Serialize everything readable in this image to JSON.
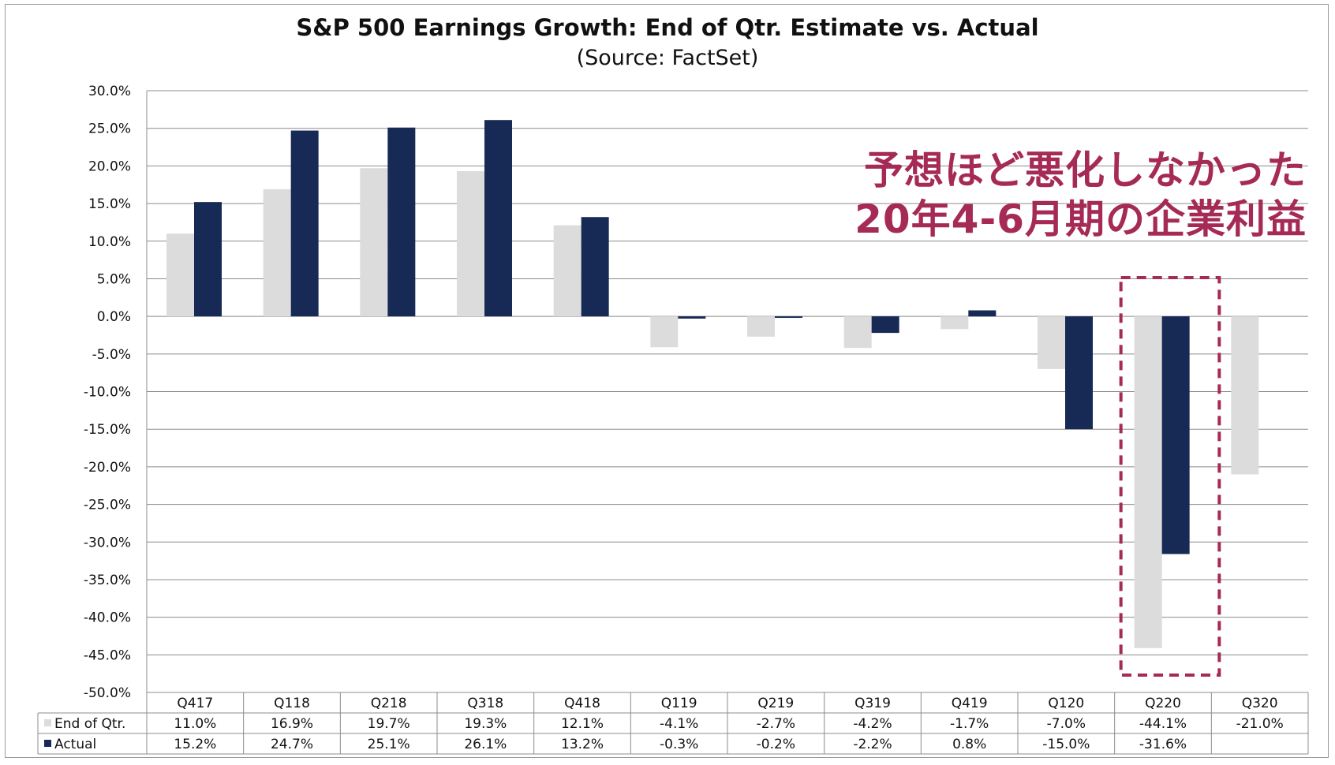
{
  "chart_data": {
    "type": "bar",
    "title": "S&P 500 Earnings Growth: End of Qtr. Estimate vs. Actual",
    "subtitle": "(Source: FactSet)",
    "categories": [
      "Q417",
      "Q118",
      "Q218",
      "Q318",
      "Q418",
      "Q119",
      "Q219",
      "Q319",
      "Q419",
      "Q120",
      "Q220",
      "Q320"
    ],
    "series": [
      {
        "name": "End of Qtr.",
        "color": "#dcdcdc",
        "values": [
          11.0,
          16.9,
          19.7,
          19.3,
          12.1,
          -4.1,
          -2.7,
          -4.2,
          -1.7,
          -7.0,
          -44.1,
          -21.0
        ],
        "labels": [
          "11.0%",
          "16.9%",
          "19.7%",
          "19.3%",
          "12.1%",
          "-4.1%",
          "-2.7%",
          "-4.2%",
          "-1.7%",
          "-7.0%",
          "-44.1%",
          "-21.0%"
        ]
      },
      {
        "name": "Actual",
        "color": "#172a56",
        "values": [
          15.2,
          24.7,
          25.1,
          26.1,
          13.2,
          -0.3,
          -0.2,
          -2.2,
          0.8,
          -15.0,
          -31.6,
          null
        ],
        "labels": [
          "15.2%",
          "24.7%",
          "25.1%",
          "26.1%",
          "13.2%",
          "-0.3%",
          "-0.2%",
          "-2.2%",
          "0.8%",
          "-15.0%",
          "-31.6%",
          ""
        ]
      }
    ],
    "ylim": [
      -50,
      30
    ],
    "yticks": [
      "30.0%",
      "25.0%",
      "20.0%",
      "15.0%",
      "10.0%",
      "5.0%",
      "0.0%",
      "-5.0%",
      "-10.0%",
      "-15.0%",
      "-20.0%",
      "-25.0%",
      "-30.0%",
      "-35.0%",
      "-40.0%",
      "-45.0%",
      "-50.0%"
    ],
    "grid": true,
    "legend": "data-table",
    "highlight": {
      "category": "Q220",
      "style": "dashed-box",
      "color": "#a52a55"
    },
    "annotation": [
      "予想ほど悪化しなかった",
      "20年4-6月期の企業利益"
    ]
  }
}
